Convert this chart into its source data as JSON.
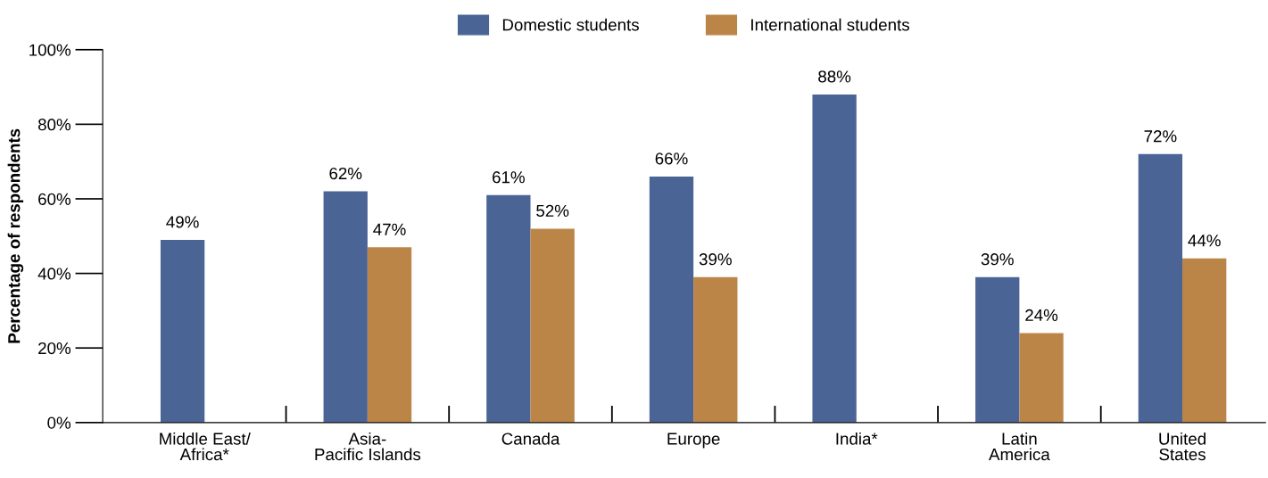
{
  "chart_data": {
    "type": "bar",
    "ylabel": "Percentage of respondents",
    "categories": [
      "Middle East/\nAfrica*",
      "Asia-\nPacific Islands",
      "Canada",
      "Europe",
      "India*",
      "Latin\nAmerica",
      "United\nStates"
    ],
    "series": [
      {
        "name": "Domestic students",
        "color": "#4a6496",
        "values": [
          49,
          62,
          61,
          66,
          88,
          39,
          72
        ],
        "value_labels": [
          "49%",
          "62%",
          "61%",
          "66%",
          "88%",
          "39%",
          "72%"
        ]
      },
      {
        "name": "International students",
        "color": "#bc8548",
        "values": [
          null,
          47,
          52,
          39,
          null,
          24,
          44
        ],
        "value_labels": [
          null,
          "47%",
          "52%",
          "39%",
          null,
          "24%",
          "44%"
        ]
      }
    ],
    "ylim": [
      0,
      100
    ],
    "yticks": [
      {
        "value": 0,
        "label": "0%"
      },
      {
        "value": 20,
        "label": "20%"
      },
      {
        "value": 40,
        "label": "40%"
      },
      {
        "value": 60,
        "label": "60%"
      },
      {
        "value": 80,
        "label": "80%"
      },
      {
        "value": 100,
        "label": "100%"
      }
    ],
    "grid": false,
    "legend": "top"
  }
}
